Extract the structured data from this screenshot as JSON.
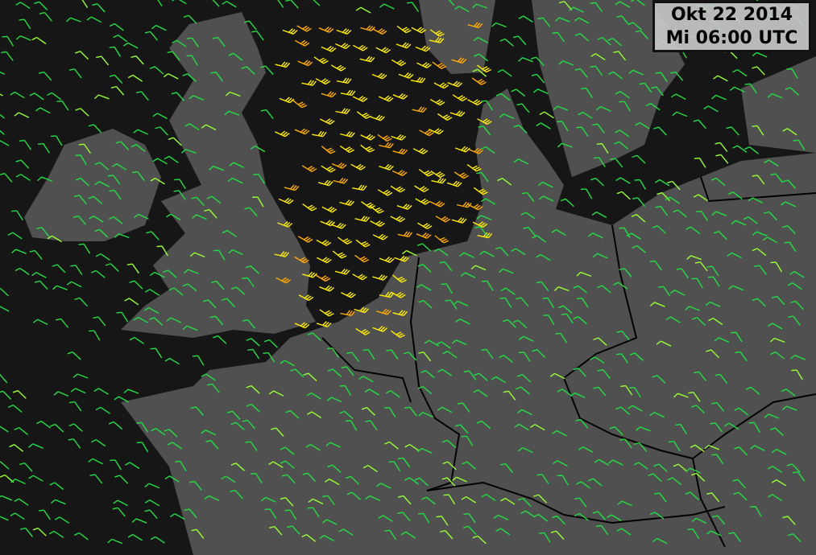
{
  "header": {
    "date": "Okt 22 2014",
    "time": "Mi 06:00 UTC"
  },
  "map": {
    "sea_color": "#161616",
    "land_color": "#505050",
    "border_color": "#000000",
    "river_color": "#1f3fbf",
    "wind_barb_colors": {
      "light": "#22dd44",
      "moderate": "#99ff33",
      "strong": "#ffee00",
      "very_strong": "#ffaa00",
      "gale": "#ff7700"
    }
  }
}
